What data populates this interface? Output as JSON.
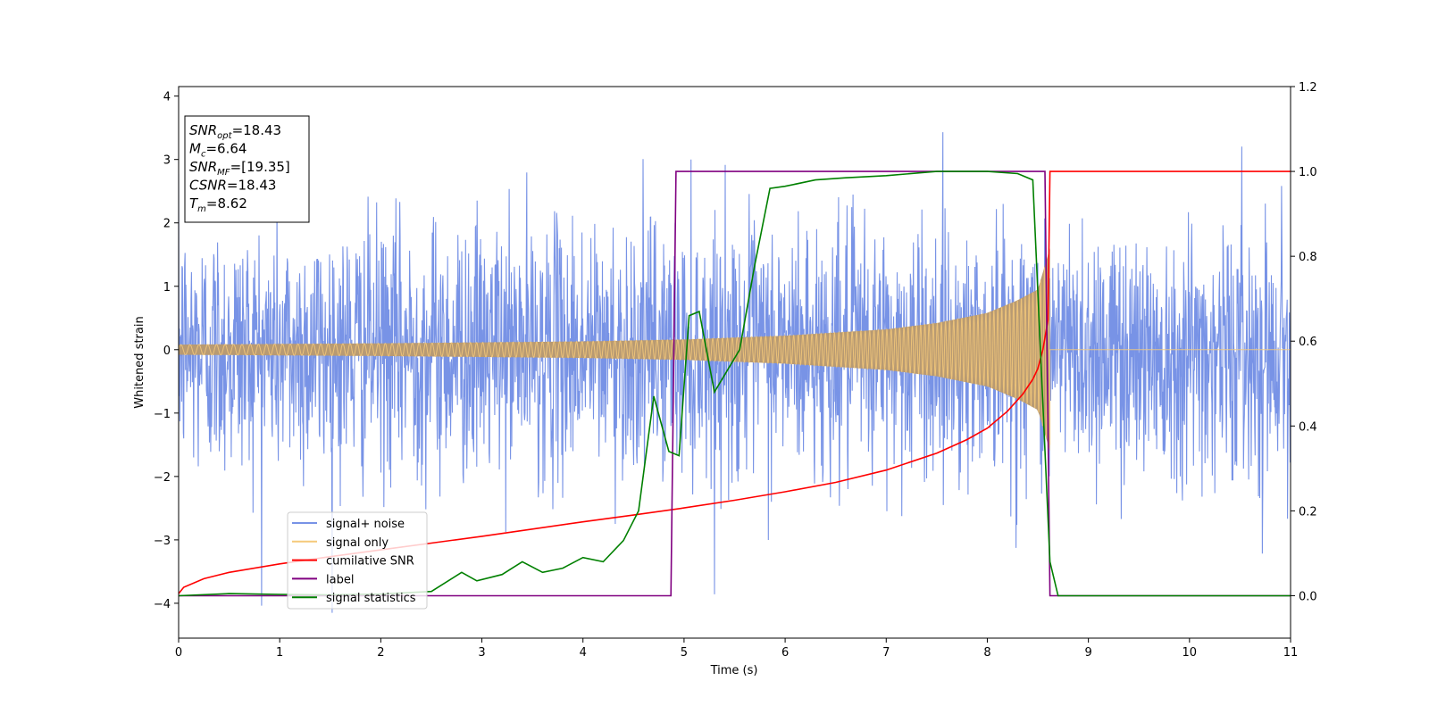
{
  "chart_data": {
    "type": "line",
    "xlabel": "Time (s)",
    "ylabel": "Whitened strain",
    "xlim": [
      0,
      11
    ],
    "ylim": [
      -4.55,
      4.15
    ],
    "y2lim": [
      -0.1,
      1.2
    ],
    "x_ticks": [
      "0",
      "1",
      "2",
      "3",
      "4",
      "5",
      "6",
      "7",
      "8",
      "9",
      "10",
      "11"
    ],
    "y_ticks": [
      "−4",
      "−3",
      "−2",
      "−1",
      "0",
      "1",
      "2",
      "3",
      "4"
    ],
    "y2_ticks": [
      "0.0",
      "0.2",
      "0.4",
      "0.6",
      "0.8",
      "1.0",
      "1.2"
    ],
    "grid": false,
    "legend_placement": "lower-left",
    "info_box": [
      {
        "symbol": "SNR",
        "sub": "opt",
        "value": "=18.43"
      },
      {
        "symbol": "M",
        "sub": "c",
        "value": "=6.64"
      },
      {
        "symbol": "SNR",
        "sub": "MF",
        "value": "=[19.35]"
      },
      {
        "symbol": "CSNR",
        "sub": "",
        "value": "=18.43"
      },
      {
        "symbol": "T",
        "sub": "m",
        "value": "=8.62"
      }
    ],
    "series": [
      {
        "name": "signal+ noise",
        "axis": "left",
        "color": "#7893e6",
        "noise_std": 1.0,
        "x_start": 0,
        "x_end": 11,
        "min": -4.15,
        "max": 3.75
      },
      {
        "name": "signal only",
        "axis": "left",
        "color": "#f5c97a",
        "x_start": 0,
        "x_end": 8.62,
        "amplitude_points": [
          [
            0,
            0.08
          ],
          [
            2,
            0.1
          ],
          [
            4,
            0.13
          ],
          [
            5,
            0.16
          ],
          [
            6,
            0.22
          ],
          [
            7,
            0.32
          ],
          [
            7.5,
            0.42
          ],
          [
            8,
            0.58
          ],
          [
            8.3,
            0.78
          ],
          [
            8.5,
            0.95
          ],
          [
            8.62,
            1.6
          ]
        ]
      },
      {
        "name": "cumilative SNR",
        "axis": "right",
        "color": "#ff0000",
        "x": [
          0,
          0.05,
          0.25,
          0.5,
          1,
          1.5,
          2,
          2.5,
          3,
          3.5,
          4,
          4.5,
          5,
          5.5,
          6,
          6.5,
          7,
          7.5,
          7.8,
          8.0,
          8.2,
          8.35,
          8.45,
          8.5,
          8.55,
          8.6,
          8.62,
          11
        ],
        "y": [
          0.005,
          0.02,
          0.04,
          0.055,
          0.075,
          0.092,
          0.108,
          0.124,
          0.14,
          0.157,
          0.174,
          0.19,
          0.207,
          0.225,
          0.245,
          0.267,
          0.296,
          0.336,
          0.368,
          0.395,
          0.435,
          0.475,
          0.51,
          0.535,
          0.58,
          0.65,
          1.0,
          1.0
        ]
      },
      {
        "name": "label",
        "axis": "right",
        "color": "#800080",
        "x": [
          0,
          4.87,
          4.92,
          8.57,
          8.62,
          11
        ],
        "y": [
          0,
          0,
          1,
          1,
          0,
          0
        ]
      },
      {
        "name": "signal statistics",
        "axis": "right",
        "color": "#008000",
        "x": [
          0,
          0.5,
          1,
          1.5,
          2,
          2.5,
          2.8,
          2.95,
          3.2,
          3.4,
          3.6,
          3.8,
          4.0,
          4.2,
          4.4,
          4.55,
          4.7,
          4.85,
          4.95,
          5.05,
          5.15,
          5.3,
          5.4,
          5.55,
          5.7,
          5.85,
          6.0,
          6.3,
          6.6,
          7.0,
          7.5,
          8.0,
          8.3,
          8.45,
          8.55,
          8.62,
          8.7,
          9.0,
          11
        ],
        "y": [
          0,
          0.005,
          0.003,
          0.002,
          0.004,
          0.01,
          0.055,
          0.035,
          0.05,
          0.08,
          0.055,
          0.065,
          0.09,
          0.08,
          0.13,
          0.2,
          0.47,
          0.34,
          0.33,
          0.66,
          0.67,
          0.48,
          0.52,
          0.58,
          0.78,
          0.96,
          0.965,
          0.98,
          0.985,
          0.99,
          1.0,
          1.0,
          0.995,
          0.98,
          0.45,
          0.08,
          0.0,
          0.0,
          0.0
        ]
      }
    ]
  }
}
